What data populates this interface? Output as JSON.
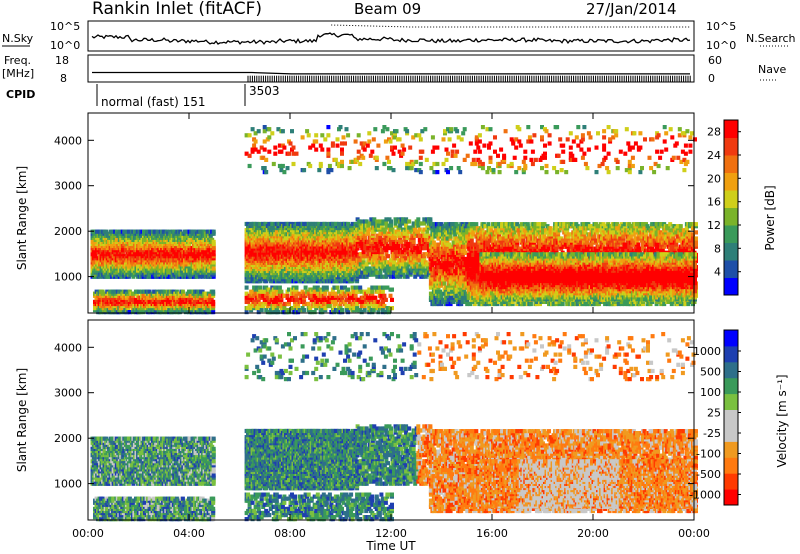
{
  "header": {
    "station": "Rankin Inlet (fitACF)",
    "beam": "Beam 09",
    "date": "27/Jan/2014"
  },
  "side_labels": {
    "nsky": "N.Sky",
    "nsearch": "N.Search",
    "freq": "Freq.",
    "freq_unit": "[MHz]",
    "nave": "Nave",
    "cpid": "CPID"
  },
  "cpid_labels": {
    "first": "normal (fast) 151",
    "second": "3503"
  },
  "colors": {
    "power_scale": [
      "#0000ff",
      "#1e4fa8",
      "#2e7f78",
      "#3a9a5a",
      "#7ab32a",
      "#cfcf1a",
      "#f0a010",
      "#f07010",
      "#f03a10",
      "#ff0000"
    ],
    "velocity_scale": [
      "#ff0000",
      "#ff3a00",
      "#ff7a10",
      "#f09a20",
      "#c8c8c8",
      "#c8c8c8",
      "#7ac040",
      "#3a9a5a",
      "#2e6f8a",
      "#1e3fb0",
      "#0000ff"
    ]
  },
  "chart_data": [
    {
      "type": "line",
      "title": "",
      "series": [
        {
          "name": "N.Sky",
          "values": [
            12,
            9,
            8,
            7,
            7,
            8,
            14,
            10,
            9,
            8,
            9,
            9,
            8,
            8,
            8,
            9
          ]
        },
        {
          "name": "N.Search",
          "values": [
            0,
            0,
            0,
            0,
            0,
            0,
            6,
            5,
            4,
            4,
            4,
            4,
            4,
            4,
            4,
            4
          ]
        }
      ],
      "x": [
        "00:00",
        "01:30",
        "03:00",
        "04:30",
        "06:00",
        "07:30",
        "09:00",
        "10:30",
        "12:00",
        "13:30",
        "15:00",
        "16:30",
        "18:00",
        "19:30",
        "21:00",
        "22:30"
      ],
      "ylabel_left": "N.Sky",
      "ylabel_right": "N.Search",
      "left_ticks": [
        "10^5",
        "10^0"
      ],
      "right_ticks": [
        "10^5",
        "10^0"
      ],
      "log_scale": true
    },
    {
      "type": "line",
      "series": [
        {
          "name": "Freq.",
          "values": [
            11.5,
            11.5,
            11.5,
            11.5,
            11.5,
            11,
            11,
            11,
            11,
            11,
            11,
            11,
            11,
            11,
            11,
            11
          ]
        },
        {
          "name": "Nave",
          "values": [
            14,
            14,
            14,
            14,
            14,
            14,
            14,
            14,
            14,
            14,
            14,
            14,
            14,
            14,
            14,
            14
          ]
        }
      ],
      "left_ticks": [
        "18",
        "8"
      ],
      "right_ticks": [
        "60",
        "0"
      ],
      "ylabel_left": "Freq. [MHz]",
      "ylabel_right": "Nave"
    },
    {
      "type": "heatmap",
      "ylabel": "Slant Range [km]",
      "y_ticks": [
        "1000",
        "2000",
        "3000",
        "4000"
      ],
      "ylim": [
        200,
        4600
      ],
      "colorbar_label": "Power [dB]",
      "colorbar_ticks": [
        "4",
        "8",
        "12",
        "16",
        "20",
        "24",
        "28"
      ],
      "colorbar_range": [
        0,
        30
      ]
    },
    {
      "type": "heatmap",
      "ylabel": "Slant Range [km]",
      "y_ticks": [
        "1000",
        "2000",
        "3000",
        "4000"
      ],
      "ylim": [
        200,
        4600
      ],
      "colorbar_label": "Velocity [m s⁻¹]",
      "colorbar_ticks": [
        "1000",
        "500",
        "100",
        "25",
        "-25",
        "-100",
        "-500",
        "-1000"
      ],
      "xlabel": "Time UT",
      "x_ticks": [
        "00:00",
        "04:00",
        "08:00",
        "12:00",
        "16:00",
        "20:00",
        "00:00"
      ],
      "xlim_hours": [
        0,
        24
      ]
    }
  ]
}
